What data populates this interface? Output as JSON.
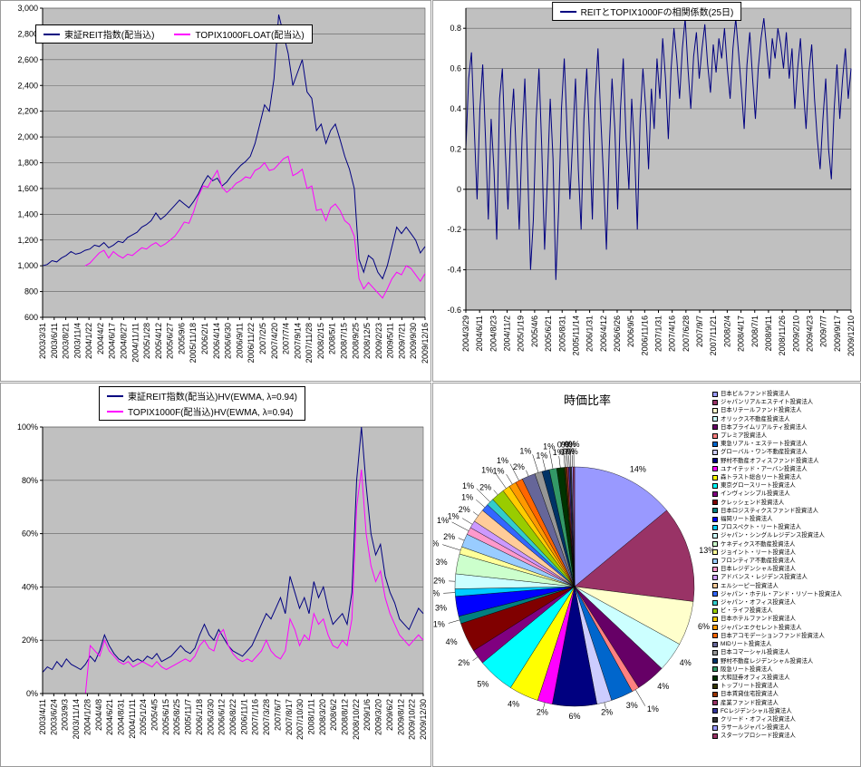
{
  "chart_data": [
    {
      "id": "reit_vs_topix1000",
      "type": "line",
      "plot_bg": "#C0C0C0",
      "grid": true,
      "legend_position": "top-left-inside",
      "dark_zero": false,
      "y_min": 600,
      "y_max": 3000,
      "y_ticks": {
        "values": [
          600,
          800,
          1000,
          1200,
          1400,
          1600,
          1800,
          2000,
          2200,
          2400,
          2600,
          2800,
          3000
        ],
        "labels": [
          "600",
          "800",
          "1,000",
          "1,200",
          "1,400",
          "1,600",
          "1,800",
          "2,000",
          "2,200",
          "2,400",
          "2,600",
          "2,800",
          "3,000"
        ]
      },
      "x_labels": [
        "2003/3/31",
        "2003/6/11",
        "2003/8/21",
        "2003/11/4",
        "2004/1/22",
        "2004/4/2",
        "2004/6/17",
        "2004/8/27",
        "2004/11/11",
        "2005/1/28",
        "2005/4/12",
        "2005/6/27",
        "2005/9/6",
        "2005/11/18",
        "2006/2/1",
        "2006/4/14",
        "2006/6/30",
        "2006/9/11",
        "2006/11/22",
        "2007/2/5",
        "2007/4/20",
        "2007/7/4",
        "2007/9/14",
        "2007/11/28",
        "2008/2/15",
        "2008/5/1",
        "2008/7/15",
        "2008/9/25",
        "2008/12/5",
        "2009/2/23",
        "2009/5/11",
        "2009/7/21",
        "2009/9/30",
        "2009/12/16"
      ],
      "series": [
        {
          "name": "東証REIT指数(配当込)",
          "color": "#000080",
          "values": [
            1000,
            1010,
            1040,
            1030,
            1060,
            1080,
            1110,
            1090,
            1100,
            1120,
            1130,
            1160,
            1150,
            1180,
            1140,
            1160,
            1190,
            1180,
            1220,
            1240,
            1260,
            1300,
            1320,
            1350,
            1410,
            1360,
            1390,
            1430,
            1470,
            1510,
            1480,
            1450,
            1500,
            1560,
            1640,
            1700,
            1660,
            1680,
            1620,
            1650,
            1700,
            1740,
            1780,
            1810,
            1850,
            1950,
            2100,
            2250,
            2200,
            2450,
            2950,
            2800,
            2650,
            2400,
            2500,
            2600,
            2350,
            2300,
            2050,
            2100,
            1950,
            2050,
            2100,
            1980,
            1850,
            1750,
            1600,
            1050,
            950,
            1080,
            1050,
            950,
            900,
            1000,
            1150,
            1300,
            1250,
            1300,
            1250,
            1200,
            1100,
            1150
          ]
        },
        {
          "name": "TOPIX1000FLOAT(配当込)",
          "color": "#FF00FF",
          "values": [
            null,
            null,
            null,
            null,
            null,
            null,
            null,
            null,
            null,
            1000,
            1020,
            1060,
            1100,
            1120,
            1060,
            1110,
            1080,
            1060,
            1090,
            1080,
            1110,
            1140,
            1130,
            1160,
            1180,
            1150,
            1170,
            1200,
            1230,
            1280,
            1340,
            1330,
            1420,
            1540,
            1620,
            1610,
            1680,
            1740,
            1610,
            1570,
            1600,
            1640,
            1660,
            1690,
            1680,
            1740,
            1760,
            1800,
            1740,
            1750,
            1790,
            1830,
            1850,
            1700,
            1720,
            1750,
            1600,
            1620,
            1430,
            1440,
            1350,
            1450,
            1480,
            1430,
            1350,
            1320,
            1230,
            900,
            820,
            870,
            830,
            790,
            750,
            820,
            900,
            950,
            930,
            1000,
            980,
            930,
            880,
            940
          ]
        }
      ]
    },
    {
      "id": "correlation_25d",
      "type": "line",
      "plot_bg": "#C0C0C0",
      "grid": true,
      "legend_position": "top-center",
      "dark_zero": true,
      "y_min": -0.6,
      "y_max": 0.9,
      "y_ticks": {
        "values": [
          -0.6,
          -0.4,
          -0.2,
          0,
          0.2,
          0.4,
          0.6,
          0.8
        ],
        "labels": [
          "-0.6",
          "-0.4",
          "-0.2",
          "0",
          "0.2",
          "0.4",
          "0.6",
          "0.8"
        ]
      },
      "x_labels": [
        "2004/3/29",
        "2004/6/11",
        "2004/8/23",
        "2004/11/2",
        "2005/1/19",
        "2005/4/6",
        "2005/6/21",
        "2005/8/31",
        "2005/11/14",
        "2006/1/31",
        "2006/4/12",
        "2006/6/26",
        "2006/9/5",
        "2006/11/16",
        "2007/1/31",
        "2007/4/16",
        "2007/6/28",
        "2007/9/7",
        "2007/11/21",
        "2008/2/4",
        "2008/4/17",
        "2008/7/1",
        "2008/9/11",
        "2008/11/26",
        "2009/2/10",
        "2009/4/23",
        "2009/7/7",
        "2009/9/17",
        "2009/12/10"
      ],
      "series": [
        {
          "name": "REITとTOPIX1000Fの相関係数(25日)",
          "color": "#000080",
          "values": [
            0.2,
            0.55,
            0.68,
            0.3,
            -0.05,
            0.4,
            0.62,
            0.25,
            -0.15,
            0.35,
            0.1,
            -0.25,
            0.45,
            0.6,
            0.2,
            -0.1,
            0.3,
            0.5,
            0.15,
            -0.2,
            0.25,
            0.55,
            0.1,
            -0.4,
            -0.15,
            0.35,
            0.6,
            0.2,
            -0.3,
            0.05,
            0.45,
            0.15,
            -0.45,
            -0.1,
            0.4,
            0.65,
            0.3,
            -0.05,
            0.25,
            0.55,
            0.1,
            -0.2,
            0.35,
            0.6,
            0.25,
            -0.15,
            0.45,
            0.7,
            0.35,
            0.05,
            -0.3,
            0.2,
            0.55,
            0.3,
            -0.1,
            0.4,
            0.65,
            0.25,
            0.0,
            0.45,
            0.2,
            -0.2,
            0.35,
            0.6,
            0.4,
            0.1,
            0.5,
            0.3,
            0.65,
            0.45,
            0.75,
            0.55,
            0.25,
            0.6,
            0.8,
            0.65,
            0.45,
            0.7,
            0.85,
            0.6,
            0.4,
            0.66,
            0.78,
            0.55,
            0.7,
            0.82,
            0.62,
            0.48,
            0.72,
            0.58,
            0.75,
            0.65,
            0.8,
            0.6,
            0.45,
            0.7,
            0.85,
            0.68,
            0.5,
            0.3,
            0.62,
            0.78,
            0.55,
            0.35,
            0.6,
            0.75,
            0.85,
            0.7,
            0.55,
            0.75,
            0.65,
            0.8,
            0.72,
            0.6,
            0.78,
            0.55,
            0.7,
            0.4,
            0.6,
            0.75,
            0.5,
            0.3,
            0.58,
            0.72,
            0.45,
            0.25,
            0.1,
            0.35,
            0.55,
            0.2,
            0.05,
            0.4,
            0.62,
            0.35,
            0.55,
            0.7,
            0.45,
            0.6
          ]
        }
      ]
    },
    {
      "id": "hv_ewma",
      "type": "line",
      "plot_bg": "#C0C0C0",
      "grid": true,
      "legend_position": "top-center",
      "dark_zero": false,
      "y_min": 0,
      "y_max": 100,
      "y_ticks": {
        "values": [
          0,
          20,
          40,
          60,
          80,
          100
        ],
        "labels": [
          "0%",
          "20%",
          "40%",
          "60%",
          "80%",
          "100%"
        ]
      },
      "x_labels": [
        "2003/4/11",
        "2003/6/24",
        "2003/9/3",
        "2003/11/14",
        "2004/1/28",
        "2004/4/8",
        "2004/6/21",
        "2004/8/31",
        "2004/11/11",
        "2005/1/24",
        "2005/4/5",
        "2005/6/15",
        "2005/8/25",
        "2005/11/7",
        "2006/1/18",
        "2006/3/30",
        "2006/6/12",
        "2006/8/22",
        "2006/11/1",
        "2007/1/16",
        "2007/3/28",
        "2007/6/7",
        "2007/8/17",
        "2007/10/30",
        "2008/1/11",
        "2008/3/20",
        "2008/6/2",
        "2008/8/12",
        "2008/10/22",
        "2009/1/6",
        "2009/3/20",
        "2009/6/2",
        "2009/8/12",
        "2009/10/22",
        "2009/12/30"
      ],
      "series": [
        {
          "name": "東証REIT指数(配当込)HV(EWMA, λ=0.94)",
          "color": "#000080",
          "values": [
            8,
            10,
            9,
            12,
            10,
            13,
            11,
            10,
            9,
            11,
            14,
            12,
            16,
            22,
            18,
            15,
            13,
            12,
            14,
            12,
            13,
            12,
            14,
            13,
            15,
            12,
            13,
            14,
            16,
            18,
            16,
            15,
            17,
            22,
            26,
            22,
            20,
            24,
            21,
            18,
            16,
            15,
            14,
            16,
            18,
            22,
            26,
            30,
            28,
            32,
            36,
            30,
            44,
            38,
            32,
            36,
            30,
            42,
            36,
            40,
            32,
            26,
            28,
            30,
            26,
            38,
            80,
            100,
            78,
            60,
            52,
            56,
            44,
            38,
            34,
            28,
            26,
            24,
            28,
            32,
            30
          ]
        },
        {
          "name": "TOPIX1000F(配当込)HV(EWMA, λ=0.94)",
          "color": "#FF00FF",
          "values": [
            null,
            null,
            null,
            null,
            null,
            null,
            null,
            null,
            null,
            0,
            18,
            16,
            14,
            20,
            16,
            14,
            12,
            11,
            12,
            10,
            11,
            12,
            11,
            10,
            12,
            10,
            9,
            10,
            11,
            12,
            13,
            12,
            14,
            18,
            20,
            17,
            16,
            22,
            24,
            18,
            15,
            13,
            12,
            13,
            12,
            14,
            16,
            20,
            16,
            14,
            13,
            16,
            28,
            24,
            18,
            22,
            20,
            30,
            26,
            28,
            22,
            18,
            17,
            20,
            18,
            28,
            70,
            84,
            60,
            48,
            42,
            46,
            36,
            30,
            26,
            22,
            20,
            18,
            20,
            22,
            20
          ]
        }
      ]
    },
    {
      "id": "market_cap_ratio",
      "type": "pie",
      "title": "時価比率",
      "slices": [
        {
          "name": "日本ビルファンド投資法人",
          "value": 14,
          "color": "#9999FF"
        },
        {
          "name": "ジャパンリアルエステイト投資法人",
          "value": 13,
          "color": "#993366"
        },
        {
          "name": "日本リテールファンド投資法人",
          "value": 6,
          "color": "#FFFFCC"
        },
        {
          "name": "オリックス不動産投資法人",
          "value": 4,
          "color": "#CCFFFF"
        },
        {
          "name": "日本プライムリアルティ投資法人",
          "value": 4,
          "color": "#660066"
        },
        {
          "name": "プレミア投資法人",
          "value": 1,
          "color": "#FF8080"
        },
        {
          "name": "東急リアル・エステート投資法人",
          "value": 3,
          "color": "#0066CC"
        },
        {
          "name": "グローバル・ワン不動産投資法人",
          "value": 2,
          "color": "#CCCCFF"
        },
        {
          "name": "野村不動産オフィスファンド投資法人",
          "value": 6,
          "color": "#000080"
        },
        {
          "name": "ユナイテッド・アーバン投資法人",
          "value": 2,
          "color": "#FF00FF"
        },
        {
          "name": "森トラスト総合リート投資法人",
          "value": 4,
          "color": "#FFFF00"
        },
        {
          "name": "東京グロースリート投資法人",
          "value": 5,
          "color": "#00FFFF"
        },
        {
          "name": "インヴィンシブル投資法人",
          "value": 2,
          "color": "#800080"
        },
        {
          "name": "クレッシェンド投資法人",
          "value": 4,
          "color": "#800000"
        },
        {
          "name": "日本ロジスティクスファンド投資法人",
          "value": 1,
          "color": "#008080"
        },
        {
          "name": "福岡リート投資法人",
          "value": 2.7,
          "color": "#0000FF"
        },
        {
          "name": "プロスペクト・リート投資法人",
          "value": 1,
          "color": "#00CCFF"
        },
        {
          "name": "ジャパン・シングルレジデンス投資法人",
          "value": 2,
          "color": "#CCFFFF"
        },
        {
          "name": "ケネディクス不動産投資法人",
          "value": 2.7,
          "color": "#CCFFCC"
        },
        {
          "name": "ジョイント・リート投資法人",
          "value": 1,
          "color": "#FFFF99"
        },
        {
          "name": "フロンティア不動産投資法人",
          "value": 1.8,
          "color": "#99CCFF"
        },
        {
          "name": "日本レジデンシャル投資法人",
          "value": 1,
          "color": "#FF99CC"
        },
        {
          "name": "アドバンス・レジデンス投資法人",
          "value": 1,
          "color": "#CC99FF"
        },
        {
          "name": "エルシーピー投資法人",
          "value": 1.8,
          "color": "#FFCC99"
        },
        {
          "name": "ジャパン・ホテル・アンド・リゾート投資法人",
          "value": 1,
          "color": "#3366FF"
        },
        {
          "name": "ジャパン・オフィス投資法人",
          "value": 1,
          "color": "#33CCCC"
        },
        {
          "name": "ビ・ライフ投資法人",
          "value": 1.8,
          "color": "#99CC00"
        },
        {
          "name": "日本ホテルファンド投資法人",
          "value": 1,
          "color": "#FFCC00"
        },
        {
          "name": "ジャパンエクセレント投資法人",
          "value": 1,
          "color": "#FF9900"
        },
        {
          "name": "日本アコモデーションファンド投資法人",
          "value": 1,
          "color": "#FF6600"
        },
        {
          "name": "MIDリート投資法人",
          "value": 1.8,
          "color": "#666699"
        },
        {
          "name": "日本コマーシャル投資法人",
          "value": 1,
          "color": "#969696"
        },
        {
          "name": "野村不動産レジデンシャル投資法人",
          "value": 1,
          "color": "#003366"
        },
        {
          "name": "阪急リート投資法人",
          "value": 1,
          "color": "#339966"
        },
        {
          "name": "大和証券オフィス投資法人",
          "value": 1,
          "color": "#003300"
        },
        {
          "name": "トップリート投資法人",
          "value": 0.2,
          "color": "#333300"
        },
        {
          "name": "日本賃貸住宅投資法人",
          "value": 0.2,
          "color": "#993300"
        },
        {
          "name": "産業ファンド投資法人",
          "value": 0.2,
          "color": "#993366"
        },
        {
          "name": "FCレジデンシャル投資法人",
          "value": 0.2,
          "color": "#333399"
        },
        {
          "name": "クリード・オフィス投資法人",
          "value": 0.2,
          "color": "#333333"
        },
        {
          "name": "ラサールジャパン投資法人",
          "value": 0.2,
          "color": "#9999FF"
        },
        {
          "name": "スターツプロシード投資法人",
          "value": 0.2,
          "color": "#993366"
        }
      ]
    }
  ]
}
